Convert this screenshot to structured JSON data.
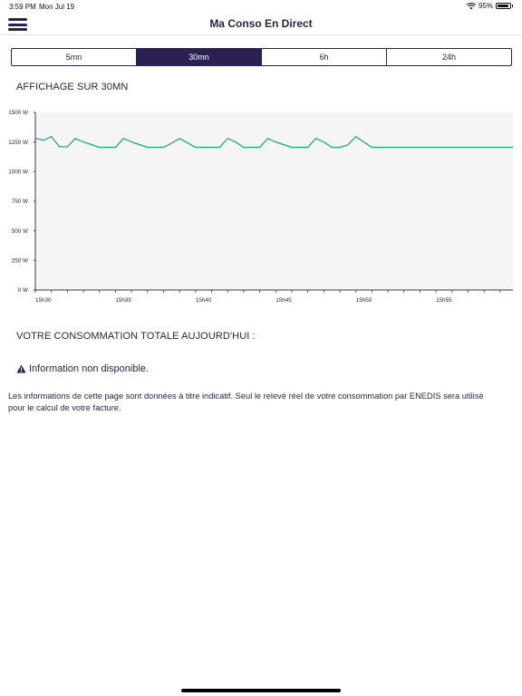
{
  "status_bar": {
    "time": "3:59 PM",
    "date": "Mon Jul 19",
    "battery": "95%",
    "battery_level": 0.95,
    "icons": [
      "wifi-icon",
      "battery-icon"
    ]
  },
  "nav": {
    "title": "Ma Conso En Direct",
    "menu_icon": "hamburger-menu-icon"
  },
  "segments": {
    "items": [
      "5mn",
      "30mn",
      "6h",
      "24h"
    ],
    "selected": "30mn"
  },
  "chart_heading": "AFFICHAGE SUR 30MN",
  "chart_data": {
    "type": "area",
    "title": "",
    "xlabel": "",
    "ylabel": "",
    "ylim": [
      0,
      1500
    ],
    "yticks": [
      0,
      250,
      500,
      750,
      1000,
      1250,
      1500
    ],
    "ytick_labels": [
      "0 W",
      "250 W",
      "500 W",
      "750 W",
      "1000 W",
      "1250 W",
      "1500 W"
    ],
    "xlim": [
      0,
      29.8
    ],
    "xticks": [
      0,
      5,
      10,
      15,
      20,
      25
    ],
    "xtick_labels": [
      "15h30",
      "15h35",
      "15h40",
      "15h45",
      "15h50",
      "15h55"
    ],
    "grid": false,
    "colors": {
      "line": "#21ab84",
      "fill": "#f5f5f6",
      "axis": "#3a3458"
    },
    "series": [
      {
        "x": [
          0,
          0.5,
          1,
          1.5,
          2,
          2.5,
          3,
          4,
          5,
          5.5,
          6,
          7,
          8,
          8.5,
          9,
          10,
          11,
          11.5,
          12,
          12.5,
          13,
          14,
          14.5,
          15,
          16,
          17,
          17.5,
          18,
          18.5,
          19,
          19.5,
          20,
          21,
          22,
          23,
          24,
          25,
          26,
          27,
          28,
          29,
          29.8
        ],
        "values": [
          1280,
          1265,
          1295,
          1210,
          1210,
          1280,
          1250,
          1205,
          1205,
          1280,
          1250,
          1205,
          1205,
          1240,
          1280,
          1205,
          1205,
          1205,
          1280,
          1250,
          1205,
          1205,
          1280,
          1250,
          1205,
          1205,
          1280,
          1250,
          1205,
          1205,
          1225,
          1295,
          1205,
          1205,
          1205,
          1205,
          1205,
          1205,
          1205,
          1205,
          1205,
          1205
        ]
      }
    ]
  },
  "total_heading": "VOTRE CONSOMMATION TOTALE AUJOURD'HUI :",
  "info": {
    "icon": "warning-icon",
    "text": "Information non disponible."
  },
  "disclaimer": "Les informations de cette page sont données à titre indicatif. Seul le relevé réel de votre consommation par ENEDIS sera utilisé pour le calcul de votre facture."
}
